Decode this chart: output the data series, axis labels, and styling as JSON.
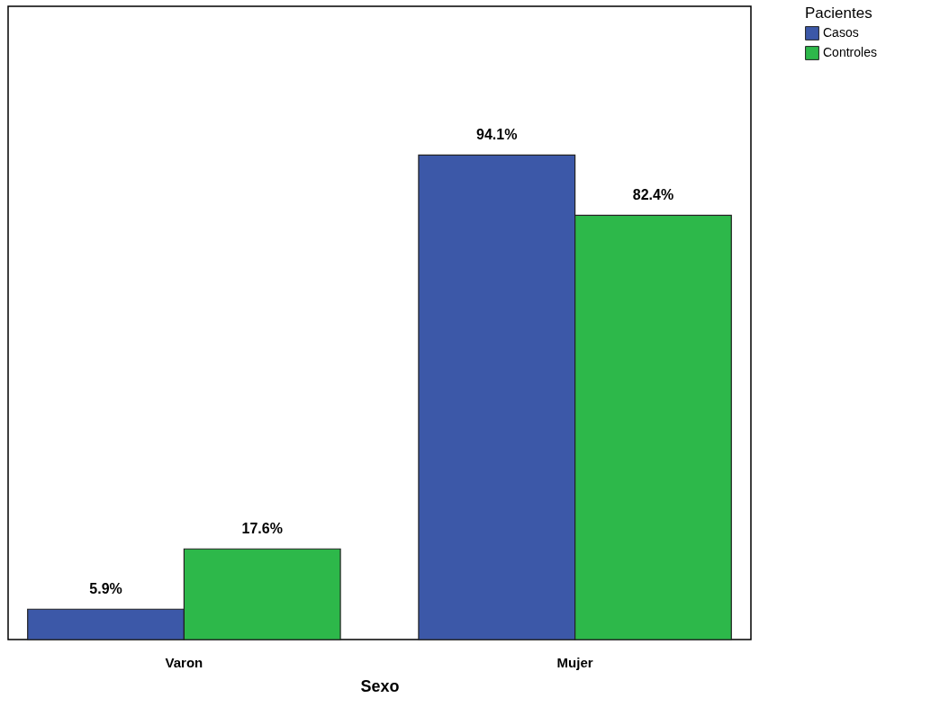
{
  "chart_data": {
    "type": "bar",
    "xlabel": "Sexo",
    "legend_title": "Pacientes",
    "legend": "top right",
    "categories": [
      "Varon",
      "Mujer"
    ],
    "ylim": [
      0,
      123
    ],
    "tick_labels": "x",
    "series": [
      {
        "name": "Casos",
        "color": "#3c58a8",
        "values": [
          5.9,
          94.1
        ],
        "value_labels": [
          "5.9%",
          "94.1%"
        ]
      },
      {
        "name": "Controles",
        "color": "#2db84a",
        "values": [
          17.6,
          82.4
        ],
        "value_labels": [
          "17.6%",
          "82.4%"
        ]
      }
    ]
  }
}
